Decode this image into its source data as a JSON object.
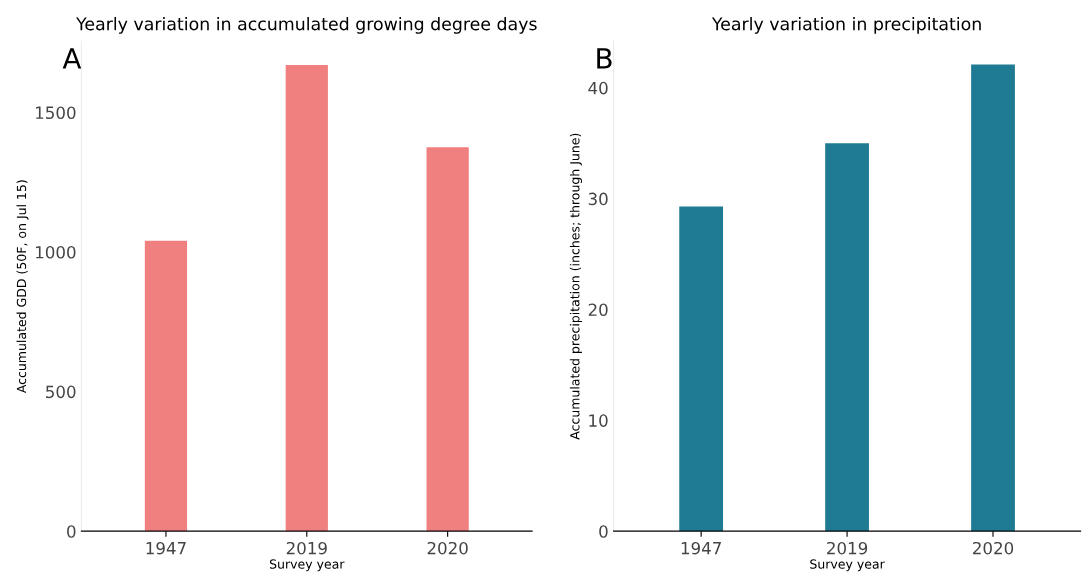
{
  "chart_data": [
    {
      "type": "bar",
      "title": "Yearly variation in accumulated growing degree days",
      "xlabel": "Survey year",
      "ylabel": "Accumulated GDD (50F, on Jul 15)",
      "annotations": [
        "A"
      ],
      "categories": [
        "1947",
        "2019",
        "2020"
      ],
      "values": [
        1040,
        1670,
        1375
      ],
      "color": "#f08080",
      "ylim": [
        0,
        1755
      ],
      "yticks": [
        0,
        500,
        1000,
        1500
      ],
      "grid": false
    },
    {
      "type": "bar",
      "title": "Yearly variation in precipitation",
      "xlabel": "Survey year",
      "ylabel": "Accumulated precipitation (inches; through June)",
      "annotations": [
        "B"
      ],
      "categories": [
        "1947",
        "2019",
        "2020"
      ],
      "values": [
        29.3,
        35.0,
        42.1
      ],
      "color": "#1f7a94",
      "ylim": [
        0,
        44.2
      ],
      "yticks": [
        0,
        10,
        20,
        30,
        40
      ],
      "grid": false
    }
  ]
}
